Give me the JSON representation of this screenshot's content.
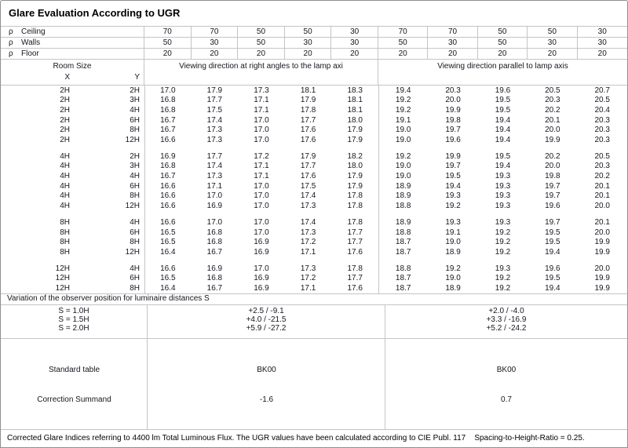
{
  "title": "Glare Evaluation According to UGR",
  "colors": {
    "background": "#ffffff",
    "grid_border": "#c4c4c4",
    "outer_border": "#8f8f8f",
    "text": "#16161f"
  },
  "reflectances": {
    "rows": [
      {
        "rho": "ρ",
        "label": "Ceiling",
        "values": [
          "70",
          "70",
          "50",
          "50",
          "30",
          "70",
          "70",
          "50",
          "50",
          "30"
        ]
      },
      {
        "rho": "ρ",
        "label": "Walls",
        "values": [
          "50",
          "30",
          "50",
          "30",
          "30",
          "50",
          "30",
          "50",
          "30",
          "30"
        ]
      },
      {
        "rho": "ρ",
        "label": "Floor",
        "values": [
          "20",
          "20",
          "20",
          "20",
          "20",
          "20",
          "20",
          "20",
          "20",
          "20"
        ]
      }
    ]
  },
  "header": {
    "room_size": "Room Size",
    "x": "X",
    "y": "Y",
    "group1": "Viewing direction at right angles to the lamp axi",
    "group2": "Viewing direction parallel to lamp axis"
  },
  "ugr": {
    "groups": [
      {
        "rows": [
          {
            "x": "2H",
            "y": "2H",
            "right": [
              "17.0",
              "17.9",
              "17.3",
              "18.1",
              "18.3"
            ],
            "parallel": [
              "19.4",
              "20.3",
              "19.6",
              "20.5",
              "20.7"
            ]
          },
          {
            "x": "2H",
            "y": "3H",
            "right": [
              "16.8",
              "17.7",
              "17.1",
              "17.9",
              "18.1"
            ],
            "parallel": [
              "19.2",
              "20.0",
              "19.5",
              "20.3",
              "20.5"
            ]
          },
          {
            "x": "2H",
            "y": "4H",
            "right": [
              "16.8",
              "17.5",
              "17.1",
              "17.8",
              "18.1"
            ],
            "parallel": [
              "19.2",
              "19.9",
              "19.5",
              "20.2",
              "20.4"
            ]
          },
          {
            "x": "2H",
            "y": "6H",
            "right": [
              "16.7",
              "17.4",
              "17.0",
              "17.7",
              "18.0"
            ],
            "parallel": [
              "19.1",
              "19.8",
              "19.4",
              "20.1",
              "20.3"
            ]
          },
          {
            "x": "2H",
            "y": "8H",
            "right": [
              "16.7",
              "17.3",
              "17.0",
              "17.6",
              "17.9"
            ],
            "parallel": [
              "19.0",
              "19.7",
              "19.4",
              "20.0",
              "20.3"
            ]
          },
          {
            "x": "2H",
            "y": "12H",
            "right": [
              "16.6",
              "17.3",
              "17.0",
              "17.6",
              "17.9"
            ],
            "parallel": [
              "19.0",
              "19.6",
              "19.4",
              "19.9",
              "20.3"
            ]
          }
        ]
      },
      {
        "rows": [
          {
            "x": "4H",
            "y": "2H",
            "right": [
              "16.9",
              "17.7",
              "17.2",
              "17.9",
              "18.2"
            ],
            "parallel": [
              "19.2",
              "19.9",
              "19.5",
              "20.2",
              "20.5"
            ]
          },
          {
            "x": "4H",
            "y": "3H",
            "right": [
              "16.8",
              "17.4",
              "17.1",
              "17.7",
              "18.0"
            ],
            "parallel": [
              "19.0",
              "19.7",
              "19.4",
              "20.0",
              "20.3"
            ]
          },
          {
            "x": "4H",
            "y": "4H",
            "right": [
              "16.7",
              "17.3",
              "17.1",
              "17.6",
              "17.9"
            ],
            "parallel": [
              "19.0",
              "19.5",
              "19.3",
              "19.8",
              "20.2"
            ]
          },
          {
            "x": "4H",
            "y": "6H",
            "right": [
              "16.6",
              "17.1",
              "17.0",
              "17.5",
              "17.9"
            ],
            "parallel": [
              "18.9",
              "19.4",
              "19.3",
              "19.7",
              "20.1"
            ]
          },
          {
            "x": "4H",
            "y": "8H",
            "right": [
              "16.6",
              "17.0",
              "17.0",
              "17.4",
              "17.8"
            ],
            "parallel": [
              "18.9",
              "19.3",
              "19.3",
              "19.7",
              "20.1"
            ]
          },
          {
            "x": "4H",
            "y": "12H",
            "right": [
              "16.6",
              "16.9",
              "17.0",
              "17.3",
              "17.8"
            ],
            "parallel": [
              "18.8",
              "19.2",
              "19.3",
              "19.6",
              "20.0"
            ]
          }
        ]
      },
      {
        "rows": [
          {
            "x": "8H",
            "y": "4H",
            "right": [
              "16.6",
              "17.0",
              "17.0",
              "17.4",
              "17.8"
            ],
            "parallel": [
              "18.9",
              "19.3",
              "19.3",
              "19.7",
              "20.1"
            ]
          },
          {
            "x": "8H",
            "y": "6H",
            "right": [
              "16.5",
              "16.8",
              "17.0",
              "17.3",
              "17.7"
            ],
            "parallel": [
              "18.8",
              "19.1",
              "19.2",
              "19.5",
              "20.0"
            ]
          },
          {
            "x": "8H",
            "y": "8H",
            "right": [
              "16.5",
              "16.8",
              "16.9",
              "17.2",
              "17.7"
            ],
            "parallel": [
              "18.7",
              "19.0",
              "19.2",
              "19.5",
              "19.9"
            ]
          },
          {
            "x": "8H",
            "y": "12H",
            "right": [
              "16.4",
              "16.7",
              "16.9",
              "17.1",
              "17.6"
            ],
            "parallel": [
              "18.7",
              "18.9",
              "19.2",
              "19.4",
              "19.9"
            ]
          }
        ]
      },
      {
        "rows": [
          {
            "x": "12H",
            "y": "4H",
            "right": [
              "16.6",
              "16.9",
              "17.0",
              "17.3",
              "17.8"
            ],
            "parallel": [
              "18.8",
              "19.2",
              "19.3",
              "19.6",
              "20.0"
            ]
          },
          {
            "x": "12H",
            "y": "6H",
            "right": [
              "16.5",
              "16.8",
              "16.9",
              "17.2",
              "17.7"
            ],
            "parallel": [
              "18.7",
              "19.0",
              "19.2",
              "19.5",
              "19.9"
            ]
          },
          {
            "x": "12H",
            "y": "8H",
            "right": [
              "16.4",
              "16.7",
              "16.9",
              "17.1",
              "17.6"
            ],
            "parallel": [
              "18.7",
              "18.9",
              "19.2",
              "19.4",
              "19.9"
            ]
          }
        ]
      }
    ]
  },
  "variation": {
    "label": "Variation of the observer position for luminaire distances S",
    "rows": [
      {
        "s": "S = 1.0H",
        "right": "+2.5 / -9.1",
        "parallel": "+2.0 / -4.0"
      },
      {
        "s": "S = 1.5H",
        "right": "+4.0 / -21.5",
        "parallel": "+3.3 / -16.9"
      },
      {
        "s": "S = 2.0H",
        "right": "+5.9 / -27.2",
        "parallel": "+5.2 / -24.2"
      }
    ]
  },
  "summary": {
    "standard_table_label": "Standard table",
    "standard_table_right": "BK00",
    "standard_table_parallel": "BK00",
    "correction_label": "Correction Summand",
    "correction_right": "-1.6",
    "correction_parallel": "0.7"
  },
  "footer": "Corrected Glare Indices referring to 4400 lm Total Luminous Flux. The UGR values have been calculated according to CIE Publ. 117    Spacing-to-Height-Ratio = 0.25."
}
